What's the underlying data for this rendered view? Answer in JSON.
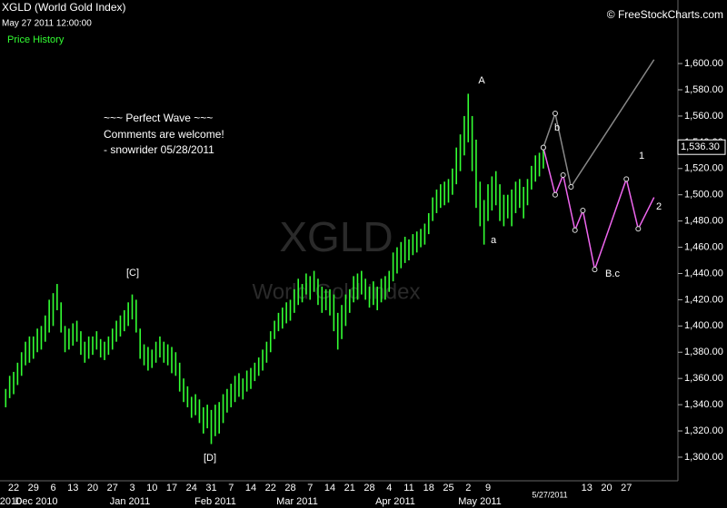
{
  "header": {
    "title": "XGLD (World Gold Index)",
    "datetime": "May 27 2011 12:00:00",
    "panel": "Price History",
    "source": "© FreeStockCharts.com"
  },
  "watermark": {
    "symbol": "XGLD",
    "name": "World Gold Index"
  },
  "comment": [
    "~~~ Perfect Wave ~~~",
    "Comments are welcome!",
    "- snowrider  05/28/2011"
  ],
  "chart_data": {
    "type": "ohlc",
    "color": "#33ff33",
    "categories": [
      null,
      null,
      "22",
      null,
      null,
      null,
      null,
      "29",
      null,
      null,
      null,
      null,
      "6",
      null,
      null,
      null,
      null,
      "13",
      null,
      null,
      null,
      null,
      "20",
      null,
      null,
      null,
      null,
      "27",
      null,
      null,
      null,
      null,
      "3",
      null,
      null,
      null,
      null,
      "10",
      null,
      null,
      null,
      null,
      "17",
      null,
      null,
      null,
      null,
      "24",
      null,
      null,
      null,
      null,
      "31",
      null,
      null,
      null,
      null,
      "7",
      null,
      null,
      null,
      null,
      "14",
      null,
      null,
      null,
      null,
      "22",
      null,
      null,
      null,
      null,
      "28",
      null,
      null,
      null,
      null,
      "7",
      null,
      null,
      null,
      null,
      "14",
      null,
      null,
      null,
      null,
      "21",
      null,
      null,
      null,
      null,
      "28",
      null,
      null,
      null,
      null,
      "4",
      null,
      null,
      null,
      null,
      "11",
      null,
      null,
      null,
      null,
      "18",
      null,
      null,
      null,
      null,
      "25",
      null,
      null,
      null,
      null,
      "2",
      null,
      null,
      null,
      null,
      "9",
      null,
      null,
      null,
      null,
      null,
      null,
      null,
      null,
      null,
      null,
      null,
      null,
      null,
      null,
      null,
      null,
      null,
      null,
      null,
      null,
      null,
      null,
      null,
      null,
      "13",
      null,
      null,
      null,
      null,
      "20",
      null,
      null,
      null,
      null,
      "27",
      null,
      null,
      null,
      null,
      null,
      null,
      null,
      null,
      null
    ],
    "month_labels": [
      "2010",
      "Dec 2010",
      "Jan 2011",
      "Feb 2011",
      "Mar 2011",
      "Apr 2011",
      "May 2011"
    ],
    "cursor_label": "5/27/2011",
    "series": [
      {
        "name": "low",
        "values": [
          1338,
          1345,
          1348,
          1355,
          1362,
          1370,
          1372,
          1375,
          1380,
          1382,
          1388,
          1395,
          1400,
          1412,
          1395,
          1380,
          1382,
          1385,
          1388,
          1378,
          1372,
          1375,
          1378,
          1382,
          1376,
          1374,
          1378,
          1382,
          1388,
          1392,
          1396,
          1400,
          1405,
          1395,
          1375,
          1370,
          1366,
          1368,
          1372,
          1376,
          1372,
          1370,
          1364,
          1362,
          1350,
          1342,
          1338,
          1330,
          1332,
          1326,
          1318,
          1322,
          1310,
          1316,
          1318,
          1326,
          1334,
          1338,
          1342,
          1346,
          1344,
          1350,
          1352,
          1358,
          1362,
          1366,
          1372,
          1380,
          1390,
          1396,
          1398,
          1402,
          1404,
          1410,
          1416,
          1418,
          1424,
          1420,
          1426,
          1416,
          1410,
          1412,
          1408,
          1396,
          1382,
          1390,
          1400,
          1410,
          1418,
          1420,
          1424,
          1420,
          1414,
          1416,
          1412,
          1418,
          1420,
          1426,
          1434,
          1440,
          1444,
          1448,
          1450,
          1454,
          1456,
          1460,
          1462,
          1470,
          1480,
          1486,
          1490,
          1492,
          1494,
          1500,
          1508,
          1518,
          1530,
          1540,
          1518,
          1490,
          1476,
          1462,
          1480,
          1488,
          1492,
          1480,
          1476,
          1482,
          1476,
          1486,
          1490,
          1482,
          1492,
          1504,
          1510,
          1514,
          1520,
          null,
          null,
          null,
          null,
          null,
          null,
          null,
          null,
          null,
          null,
          null,
          null,
          null,
          null,
          null,
          null,
          null,
          null,
          null,
          null,
          null,
          null,
          null,
          null,
          null,
          null,
          null,
          null,
          null,
          null
        ]
      },
      {
        "name": "high",
        "values": [
          1352,
          1362,
          1365,
          1372,
          1380,
          1388,
          1392,
          1392,
          1398,
          1400,
          1408,
          1420,
          1425,
          1432,
          1418,
          1400,
          1398,
          1402,
          1404,
          1396,
          1388,
          1392,
          1392,
          1396,
          1390,
          1388,
          1392,
          1398,
          1404,
          1408,
          1412,
          1418,
          1424,
          1420,
          1398,
          1386,
          1384,
          1382,
          1388,
          1392,
          1388,
          1386,
          1384,
          1380,
          1372,
          1360,
          1354,
          1346,
          1348,
          1344,
          1338,
          1340,
          1336,
          1340,
          1342,
          1348,
          1352,
          1356,
          1362,
          1364,
          1360,
          1366,
          1368,
          1372,
          1376,
          1382,
          1388,
          1396,
          1404,
          1410,
          1414,
          1418,
          1420,
          1428,
          1436,
          1432,
          1440,
          1438,
          1442,
          1436,
          1430,
          1428,
          1428,
          1424,
          1410,
          1416,
          1424,
          1428,
          1438,
          1440,
          1442,
          1436,
          1430,
          1434,
          1430,
          1436,
          1438,
          1442,
          1456,
          1460,
          1464,
          1468,
          1466,
          1470,
          1472,
          1474,
          1478,
          1486,
          1498,
          1504,
          1508,
          1510,
          1512,
          1520,
          1536,
          1546,
          1560,
          1577,
          1560,
          1542,
          1510,
          1496,
          1508,
          1514,
          1518,
          1508,
          1500,
          1500,
          1504,
          1510,
          1512,
          1506,
          1512,
          1522,
          1530,
          1532,
          1538,
          null,
          null,
          null,
          null,
          null,
          null,
          null,
          null,
          null,
          null,
          null,
          null,
          null,
          null,
          null,
          null,
          null,
          null,
          null,
          null,
          null,
          null,
          null,
          null,
          null,
          null,
          null,
          null,
          null,
          null
        ]
      }
    ],
    "projections": [
      {
        "color": "#888888",
        "values": [
          null,
          null,
          null,
          null,
          null,
          null,
          null,
          null,
          null,
          null,
          null,
          null,
          null,
          null,
          null,
          null,
          null,
          null,
          null,
          null,
          null,
          null,
          null,
          null,
          null,
          null,
          null,
          null,
          null,
          null,
          null,
          null,
          null,
          null,
          null,
          null,
          null,
          null,
          null,
          null,
          null,
          null,
          null,
          null,
          null,
          null,
          null,
          null,
          null,
          null,
          null,
          null,
          null,
          null,
          null,
          null,
          null,
          null,
          null,
          null,
          null,
          null,
          null,
          null,
          null,
          null,
          null,
          null,
          null,
          null,
          null,
          null,
          null,
          null,
          null,
          null,
          null,
          null,
          null,
          null,
          null,
          null,
          null,
          null,
          null,
          null,
          null,
          null,
          null,
          null,
          null,
          null,
          null,
          null,
          null,
          null,
          null,
          null,
          null,
          null,
          null,
          null,
          null,
          null,
          null,
          null,
          null,
          null,
          null,
          null,
          null,
          null,
          null,
          null,
          null,
          null,
          null,
          null,
          null,
          null,
          null,
          null,
          null,
          null,
          null,
          null,
          null,
          null,
          null,
          null,
          null,
          null,
          null,
          null,
          null,
          null,
          1536,
          null,
          null,
          1562,
          null,
          null,
          null,
          1506,
          null,
          null,
          null,
          null,
          null,
          null,
          null,
          null,
          null,
          null,
          null,
          null,
          null,
          null,
          null,
          null,
          null,
          null,
          null,
          null,
          1603,
          null,
          null
        ]
      },
      {
        "color": "#ee66ee",
        "values": [
          null,
          null,
          null,
          null,
          null,
          null,
          null,
          null,
          null,
          null,
          null,
          null,
          null,
          null,
          null,
          null,
          null,
          null,
          null,
          null,
          null,
          null,
          null,
          null,
          null,
          null,
          null,
          null,
          null,
          null,
          null,
          null,
          null,
          null,
          null,
          null,
          null,
          null,
          null,
          null,
          null,
          null,
          null,
          null,
          null,
          null,
          null,
          null,
          null,
          null,
          null,
          null,
          null,
          null,
          null,
          null,
          null,
          null,
          null,
          null,
          null,
          null,
          null,
          null,
          null,
          null,
          null,
          null,
          null,
          null,
          null,
          null,
          null,
          null,
          null,
          null,
          null,
          null,
          null,
          null,
          null,
          null,
          null,
          null,
          null,
          null,
          null,
          null,
          null,
          null,
          null,
          null,
          null,
          null,
          null,
          null,
          null,
          null,
          null,
          null,
          null,
          null,
          null,
          null,
          null,
          null,
          null,
          null,
          null,
          null,
          null,
          null,
          null,
          null,
          null,
          null,
          null,
          null,
          null,
          null,
          null,
          null,
          null,
          null,
          null,
          null,
          null,
          null,
          null,
          null,
          null,
          null,
          null,
          null,
          null,
          null,
          1536,
          null,
          null,
          1500,
          null,
          1515,
          null,
          null,
          1473,
          null,
          1488,
          null,
          null,
          1443,
          null,
          null,
          null,
          null,
          null,
          null,
          null,
          1512,
          null,
          null,
          1474,
          null,
          null,
          null,
          1498,
          null,
          null
        ]
      }
    ],
    "annotations": [
      {
        "text": "A"
      },
      {
        "text": "a"
      },
      {
        "text": "b"
      },
      {
        "text": "[C]"
      },
      {
        "text": "[D]"
      },
      {
        "text": "1"
      },
      {
        "text": "2"
      },
      {
        "text": "B.c"
      }
    ],
    "last_price": {
      "value": 1536.3,
      "label": "1,536.30"
    },
    "ylim": [
      1282,
      1636
    ],
    "yticks": [
      {
        "value": 1300,
        "label": "1,300.00"
      },
      {
        "value": 1320,
        "label": "1,320.00"
      },
      {
        "value": 1340,
        "label": "1,340.00"
      },
      {
        "value": 1360,
        "label": "1,360.00"
      },
      {
        "value": 1380,
        "label": "1,380.00"
      },
      {
        "value": 1400,
        "label": "1,400.00"
      },
      {
        "value": 1420,
        "label": "1,420.00"
      },
      {
        "value": 1440,
        "label": "1,440.00"
      },
      {
        "value": 1460,
        "label": "1,460.00"
      },
      {
        "value": 1480,
        "label": "1,480.00"
      },
      {
        "value": 1500,
        "label": "1,500.00"
      },
      {
        "value": 1520,
        "label": "1,520.00"
      },
      {
        "value": 1540,
        "label": "1,540.00"
      },
      {
        "value": 1560,
        "label": "1,560.00"
      },
      {
        "value": 1580,
        "label": "1,580.00"
      },
      {
        "value": 1600,
        "label": "1,600.00"
      }
    ]
  }
}
